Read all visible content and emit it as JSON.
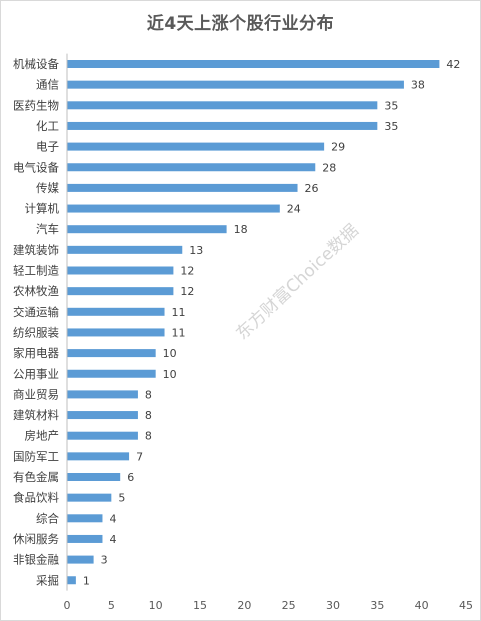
{
  "chart_data": {
    "type": "bar",
    "orientation": "horizontal",
    "title": "近4天上涨个股行业分布",
    "watermark": "东方财富Choice数据",
    "categories": [
      "机械设备",
      "通信",
      "医药生物",
      "化工",
      "电子",
      "电气设备",
      "传媒",
      "计算机",
      "汽车",
      "建筑装饰",
      "轻工制造",
      "农林牧渔",
      "交通运输",
      "纺织服装",
      "家用电器",
      "公用事业",
      "商业贸易",
      "建筑材料",
      "房地产",
      "国防军工",
      "有色金属",
      "食品饮料",
      "综合",
      "休闲服务",
      "非银金融",
      "采掘"
    ],
    "values": [
      42,
      38,
      35,
      35,
      29,
      28,
      26,
      24,
      18,
      13,
      12,
      12,
      11,
      11,
      10,
      10,
      8,
      8,
      8,
      7,
      6,
      5,
      4,
      4,
      3,
      1
    ],
    "xlim": [
      0,
      45
    ],
    "xticks": [
      0,
      5,
      10,
      15,
      20,
      25,
      30,
      35,
      40,
      45
    ],
    "data_labels": true,
    "grid": false,
    "legend": "none",
    "colors": {
      "bar": "#5b9bd5",
      "axis": "#bfbfbf",
      "title": "#595959"
    }
  }
}
